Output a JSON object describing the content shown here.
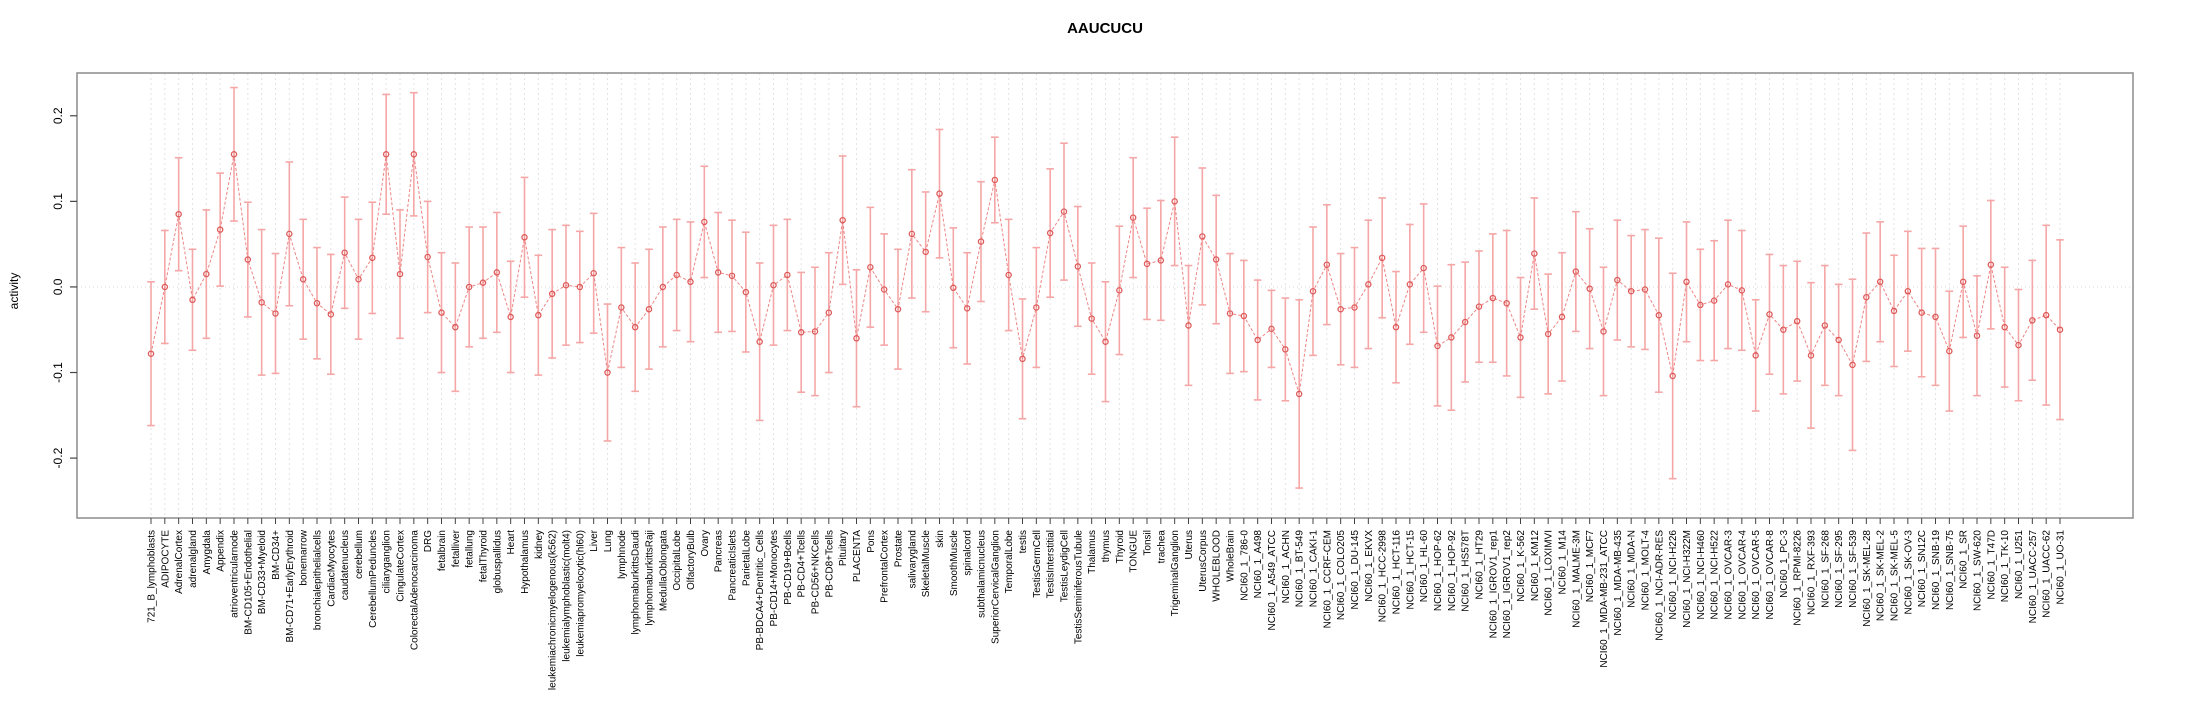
{
  "page": {
    "background": "#ffffff"
  },
  "chart_data": {
    "type": "scatter",
    "subtype": "point-estimates-with-error-bars",
    "title": "AAUCUCU",
    "xlabel": "",
    "ylabel": "activity",
    "yticks": [
      "-0.2",
      "-0.1",
      "0.0",
      "0.1",
      "0.2"
    ],
    "ytick_values": [
      -0.2,
      -0.1,
      0.0,
      0.1,
      0.2
    ],
    "ylim": [
      -0.27,
      0.25
    ],
    "grid": "vertical-dashed-per-category",
    "zero_line": "dotted",
    "legend_position": "none",
    "colors": {
      "marker": "#dd5a5a",
      "line": "#ee8585",
      "errorbar": "#f5a6a6",
      "grid": "#e2e2e2",
      "zero_line": "#d9d9d9",
      "box": "#8c8c8c",
      "tick": "#444444",
      "text": "#000000"
    },
    "categories": [
      "721_B_lymphoblasts",
      "ADIPOCYTE",
      "AdrenalCortex",
      "adrenalgland",
      "Amygdala",
      "Appendix",
      "atrioventricularnode",
      "BM-CD105+Endothelial",
      "BM-CD33+Myeloid",
      "BM-CD34+",
      "BM-CD71+EarlyErythroid",
      "bonemarrow",
      "bronchialepithelialcells",
      "CardiacMyocytes",
      "caudatenucleus",
      "cerebellum",
      "CerebellumPeduncles",
      "ciliaryganglion",
      "CingulateCortex",
      "ColorectalAdenocarcinoma",
      "DRG",
      "fetalbrain",
      "fetalliver",
      "fetallung",
      "fetalThyroid",
      "globuspallidus",
      "Heart",
      "Hypothalamus",
      "kidney",
      "leukemiachronicmyelogenous(k562)",
      "leukemialymphoblastic(molt4)",
      "leukemiapromyelocytic(hl60)",
      "Liver",
      "Lung",
      "lymphnode",
      "lymphomaburkittsDaudi",
      "lymphomaburkittsRaji",
      "MedullaOblongata",
      "OccipitalLobe",
      "OlfactoryBulb",
      "Ovary",
      "Pancreas",
      "PancreaticIslets",
      "ParietalLobe",
      "PB-BDCA4+Dentritic_Cells",
      "PB-CD14+Monocytes",
      "PB-CD19+Bcells",
      "PB-CD4+Tcells",
      "PB-CD56+NKCells",
      "PB-CD8+Tcells",
      "Pituitary",
      "PLACENTA",
      "Pons",
      "PrefrontalCortex",
      "Prostate",
      "salivarygland",
      "SkeletalMuscle",
      "skin",
      "SmoothMuscle",
      "spinalcord",
      "subthalamicnucleus",
      "SuperiorCervicalGanglion",
      "TemporalLobe",
      "testis",
      "TestisGermCell",
      "TestisInterstitial",
      "TestisLeydigCell",
      "TestisSeminiferousTubule",
      "Thalamus",
      "thymus",
      "Thyroid",
      "TONGUE",
      "Tonsil",
      "trachea",
      "TrigeminalGanglion",
      "Uterus",
      "UterusCorpus",
      "WHOLEBLOOD",
      "WholeBrain",
      "NCI60_1_786-0",
      "NCI60_1_A498",
      "NCI60_1_A549_ATCC",
      "NCI60_1_ACHN",
      "NCI60_1_BT-549",
      "NCI60_1_CAKI-1",
      "NCI60_1_CCRF-CEM",
      "NCI60_1_COLO205",
      "NCI60_1_DU-145",
      "NCI60_1_EKVX",
      "NCI60_1_HCC-2998",
      "NCI60_1_HCT-116",
      "NCI60_1_HCT-15",
      "NCI60_1_HL-60",
      "NCI60_1_HOP-62",
      "NCI60_1_HOP-92",
      "NCI60_1_HS578T",
      "NCI60_1_HT29",
      "NCI60_1_IGROV1_rep1",
      "NCI60_1_IGROV1_rep2",
      "NCI60_1_K-562",
      "NCI60_1_KM12",
      "NCI60_1_LOXIMVI",
      "NCI60_1_M14",
      "NCI60_1_MALME-3M",
      "NCI60_1_MCF7",
      "NCI60_1_MDA-MB-231_ATCC",
      "NCI60_1_MDA-MB-435",
      "NCI60_1_MDA-N",
      "NCI60_1_MOLT-4",
      "NCI60_1_NCI-ADR-RES",
      "NCI60_1_NCI-H226",
      "NCI60_1_NCI-H322M",
      "NCI60_1_NCI-H460",
      "NCI60_1_NCI-H522",
      "NCI60_1_OVCAR-3",
      "NCI60_1_OVCAR-4",
      "NCI60_1_OVCAR-5",
      "NCI60_1_OVCAR-8",
      "NCI60_1_PC-3",
      "NCI60_1_RPMI-8226",
      "NCI60_1_RXF-393",
      "NCI60_1_SF-268",
      "NCI60_1_SF-295",
      "NCI60_1_SF-539",
      "NCI60_1_SK-MEL-28",
      "NCI60_1_SK-MEL-2",
      "NCI60_1_SK-MEL-5",
      "NCI60_1_SK-OV-3",
      "NCI60_1_SN12C",
      "NCI60_1_SNB-19",
      "NCI60_1_SNB-75",
      "NCI60_1_SR",
      "NCI60_1_SW-620",
      "NCI60_1_T47D",
      "NCI60_1_TK-10",
      "NCI60_1_U251",
      "NCI60_1_UACC-257",
      "NCI60_1_UACC-62",
      "NCI60_1_UO-31"
    ],
    "values": [
      -0.078,
      0.0,
      0.085,
      -0.015,
      0.015,
      0.067,
      0.155,
      0.032,
      -0.018,
      -0.031,
      0.062,
      0.009,
      -0.019,
      -0.032,
      0.04,
      0.009,
      0.034,
      0.155,
      0.015,
      0.155,
      0.035,
      -0.03,
      -0.047,
      0.0,
      0.005,
      0.017,
      -0.035,
      0.058,
      -0.033,
      -0.008,
      0.002,
      0.0,
      0.016,
      -0.1,
      -0.024,
      -0.047,
      -0.026,
      0.0,
      0.014,
      0.006,
      0.076,
      0.017,
      0.013,
      -0.006,
      -0.064,
      0.002,
      0.014,
      -0.053,
      -0.052,
      -0.03,
      0.078,
      -0.06,
      0.023,
      -0.003,
      -0.026,
      0.062,
      0.041,
      0.109,
      -0.001,
      -0.025,
      0.053,
      0.125,
      0.014,
      -0.084,
      -0.024,
      0.063,
      0.088,
      0.024,
      -0.037,
      -0.064,
      -0.004,
      0.081,
      0.027,
      0.031,
      0.1,
      -0.045,
      0.059,
      0.032,
      -0.031,
      -0.034,
      -0.062,
      -0.049,
      -0.073,
      -0.125,
      -0.005,
      0.026,
      -0.026,
      -0.024,
      0.003,
      0.034,
      -0.047,
      0.003,
      0.022,
      -0.069,
      -0.059,
      -0.041,
      -0.023,
      -0.013,
      -0.019,
      -0.059,
      0.039,
      -0.055,
      -0.035,
      0.018,
      -0.002,
      -0.052,
      0.008,
      -0.005,
      -0.003,
      -0.033,
      -0.104,
      0.006,
      -0.021,
      -0.016,
      0.003,
      -0.004,
      -0.08,
      -0.032,
      -0.05,
      -0.04,
      -0.08,
      -0.045,
      -0.062,
      -0.091,
      -0.012,
      0.006,
      -0.028,
      -0.005,
      -0.03,
      -0.035,
      -0.075,
      0.006,
      -0.057,
      0.026,
      -0.047,
      -0.068,
      -0.039,
      -0.033,
      -0.05
    ],
    "errors": [
      0.084,
      0.066,
      0.066,
      0.059,
      0.075,
      0.066,
      0.078,
      0.067,
      0.085,
      0.07,
      0.084,
      0.07,
      0.065,
      0.07,
      0.065,
      0.07,
      0.065,
      0.07,
      0.075,
      0.072,
      0.065,
      0.07,
      0.075,
      0.07,
      0.065,
      0.07,
      0.065,
      0.07,
      0.07,
      0.075,
      0.07,
      0.065,
      0.07,
      0.08,
      0.07,
      0.075,
      0.07,
      0.07,
      0.065,
      0.07,
      0.065,
      0.07,
      0.065,
      0.07,
      0.092,
      0.07,
      0.065,
      0.07,
      0.075,
      0.07,
      0.075,
      0.08,
      0.07,
      0.065,
      0.07,
      0.075,
      0.07,
      0.075,
      0.07,
      0.065,
      0.07,
      0.05,
      0.065,
      0.07,
      0.07,
      0.075,
      0.08,
      0.07,
      0.065,
      0.07,
      0.075,
      0.07,
      0.065,
      0.07,
      0.075,
      0.07,
      0.08,
      0.075,
      0.07,
      0.065,
      0.07,
      0.045,
      0.06,
      0.11,
      0.075,
      0.07,
      0.065,
      0.07,
      0.075,
      0.07,
      0.065,
      0.07,
      0.075,
      0.07,
      0.085,
      0.07,
      0.065,
      0.075,
      0.085,
      0.07,
      0.065,
      0.07,
      0.075,
      0.07,
      0.07,
      0.075,
      0.07,
      0.065,
      0.07,
      0.09,
      0.12,
      0.07,
      0.065,
      0.07,
      0.075,
      0.07,
      0.065,
      0.07,
      0.075,
      0.07,
      0.085,
      0.07,
      0.065,
      0.1,
      0.075,
      0.07,
      0.065,
      0.07,
      0.075,
      0.08,
      0.07,
      0.065,
      0.07,
      0.075,
      0.07,
      0.065,
      0.07,
      0.105,
      0.105
    ]
  }
}
